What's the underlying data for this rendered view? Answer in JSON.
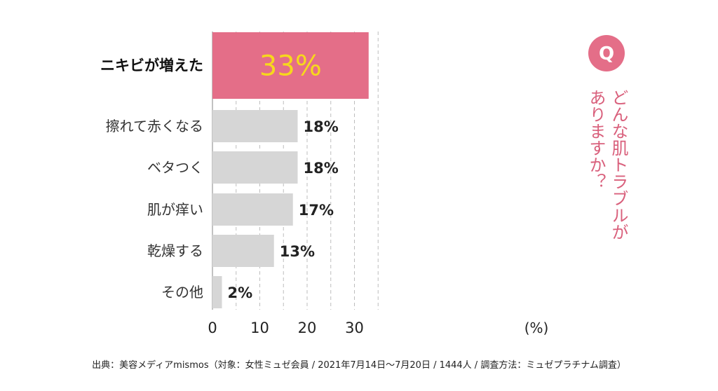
{
  "chart_data": {
    "type": "bar",
    "orientation": "horizontal",
    "categories": [
      "ニキビが増えた",
      "擦れて赤くなる",
      "ベタつく",
      "肌が痒い",
      "乾燥する",
      "その他"
    ],
    "values": [
      33,
      18,
      18,
      17,
      13,
      2
    ],
    "value_labels": [
      "33%",
      "18%",
      "18%",
      "17%",
      "13%",
      "2%"
    ],
    "highlight_index": 0,
    "xlim": [
      0,
      35
    ],
    "xticks": [
      0,
      10,
      20,
      30
    ],
    "xtick_labels": [
      "0",
      "10",
      "20",
      "30"
    ],
    "unit": "(%)",
    "grid": true,
    "colors": {
      "highlight": "#e46e88",
      "bar": "#d6d6d6",
      "highlight_value": "#f7d81c",
      "accent": "#d9607c"
    }
  },
  "question": {
    "badge": "Q",
    "line1": "どんな肌トラブルが",
    "line2": "ありますか？"
  },
  "source": "出典：美容メディアmismos（対象：女性ミュゼ会員 / 2021年7月14日〜7月20日 / 1444人 / 調査方法：ミュゼプラチナム調査）"
}
